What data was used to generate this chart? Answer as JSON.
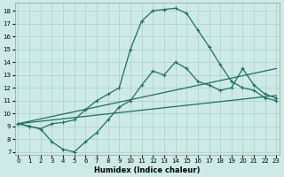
{
  "xlabel": "Humidex (Indice chaleur)",
  "background_color": "#ceeae7",
  "grid_color": "#add4d0",
  "line_color": "#1e6e62",
  "x_ticks": [
    0,
    1,
    2,
    3,
    4,
    5,
    6,
    7,
    8,
    9,
    10,
    11,
    12,
    13,
    14,
    15,
    16,
    17,
    18,
    19,
    20,
    21,
    22,
    23
  ],
  "y_ticks": [
    7,
    8,
    9,
    10,
    11,
    12,
    13,
    14,
    15,
    16,
    17,
    18
  ],
  "ylim": [
    6.8,
    18.6
  ],
  "xlim": [
    -0.3,
    23.3
  ],
  "curve_peak_x": [
    0,
    1,
    2,
    3,
    4,
    5,
    6,
    7,
    8,
    9,
    10,
    11,
    12,
    13,
    14,
    15,
    16,
    17,
    18,
    19,
    20,
    21,
    22,
    23
  ],
  "curve_peak_y": [
    9.2,
    9.0,
    8.8,
    9.2,
    9.3,
    9.5,
    10.3,
    11.0,
    11.5,
    12.0,
    15.0,
    17.2,
    18.0,
    18.1,
    18.2,
    17.8,
    16.5,
    15.2,
    13.8,
    12.5,
    12.0,
    11.8,
    11.2,
    11.0
  ],
  "curve_dip_x": [
    0,
    1,
    2,
    3,
    4,
    5,
    6,
    7,
    8,
    9,
    10,
    11,
    12,
    13,
    14,
    15,
    16,
    17,
    18,
    19,
    20,
    21,
    22,
    23
  ],
  "curve_dip_y": [
    9.2,
    9.0,
    8.8,
    7.8,
    7.2,
    7.0,
    7.8,
    8.5,
    9.5,
    10.5,
    11.0,
    12.2,
    13.3,
    13.0,
    14.0,
    13.5,
    12.5,
    12.2,
    11.8,
    12.0,
    13.5,
    12.2,
    11.5,
    11.2
  ],
  "curve_upper_line_x": [
    0,
    23
  ],
  "curve_upper_line_y": [
    9.2,
    13.5
  ],
  "curve_lower_line_x": [
    0,
    23
  ],
  "curve_lower_line_y": [
    9.2,
    11.4
  ]
}
